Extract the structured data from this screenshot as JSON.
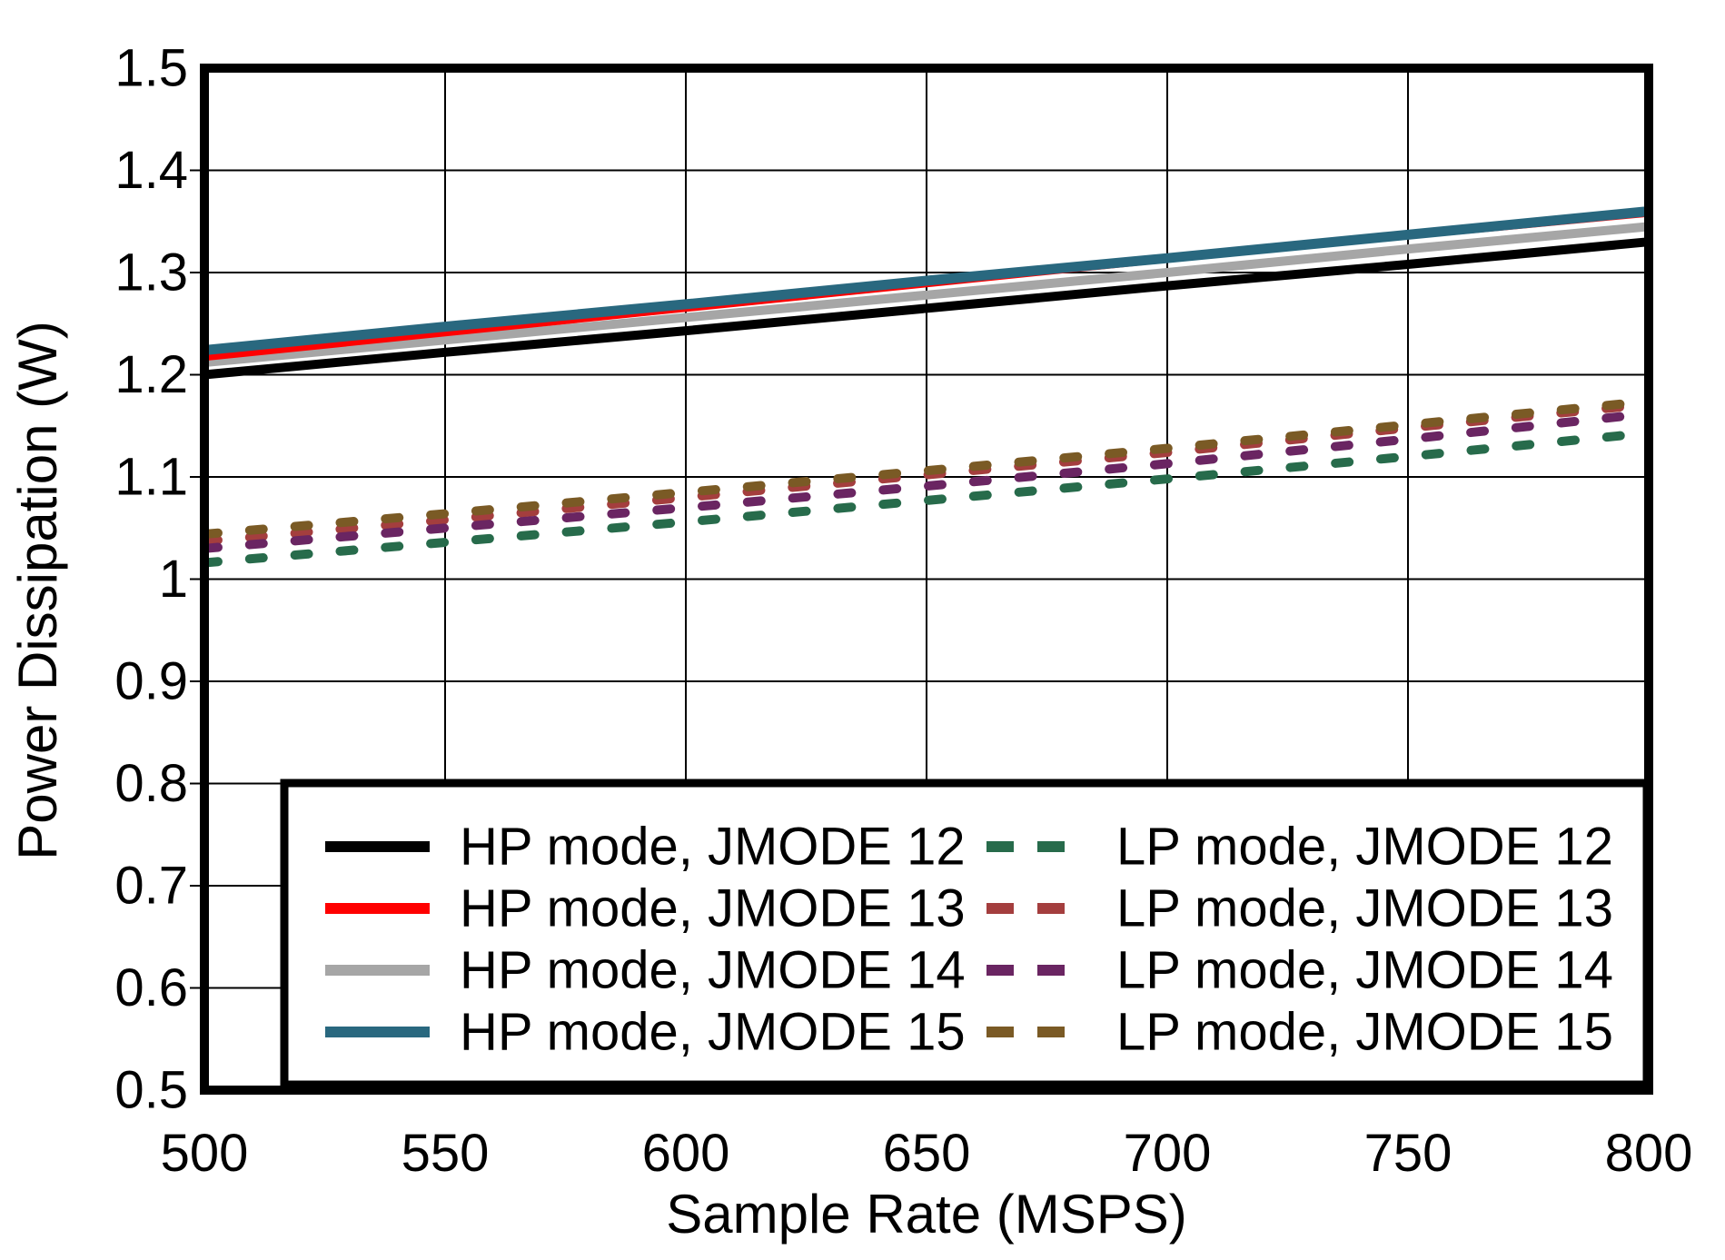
{
  "chart_data": {
    "type": "line",
    "title": "",
    "xlabel": "Sample Rate (MSPS)",
    "ylabel": "Power Dissipation (W)",
    "xlim": [
      500,
      800
    ],
    "ylim": [
      0.5,
      1.5
    ],
    "grid": true,
    "x_ticks": [
      500,
      550,
      600,
      650,
      700,
      750,
      800
    ],
    "x_tick_labels": [
      "500",
      "550",
      "600",
      "650",
      "700",
      "750",
      "800"
    ],
    "y_ticks": [
      1.5,
      1.4,
      1.3,
      1.2,
      1.1,
      1.0,
      0.9,
      0.8,
      0.7,
      0.6,
      0.5
    ],
    "y_tick_labels": [
      "1.5",
      "1.4",
      "1.3",
      "1.2",
      "1.1",
      "1",
      "0.9",
      "0.8",
      "0.7",
      "0.6",
      "0.5"
    ],
    "x": [
      500,
      550,
      600,
      650,
      700,
      750,
      800
    ],
    "legend_position": "inside bottom-left, boxed, 2 columns",
    "series": [
      {
        "name": "HP mode, JMODE 12",
        "mode": "HP",
        "jmode": 12,
        "color": "#000000",
        "line_style": "solid",
        "legend_column": "left",
        "draw_order": 1,
        "values": [
          1.2,
          1.222,
          1.243,
          1.265,
          1.287,
          1.308,
          1.33
        ]
      },
      {
        "name": "HP mode, JMODE 13",
        "mode": "HP",
        "jmode": 13,
        "color": "#FF0000",
        "line_style": "solid",
        "legend_column": "left",
        "draw_order": 3,
        "values": [
          1.218,
          1.242,
          1.266,
          1.29,
          1.314,
          1.337,
          1.359
        ]
      },
      {
        "name": "HP mode, JMODE 14",
        "mode": "HP",
        "jmode": 14,
        "color": "#A6A6A6",
        "line_style": "solid",
        "legend_column": "left",
        "draw_order": 2,
        "values": [
          1.212,
          1.234,
          1.256,
          1.278,
          1.3,
          1.323,
          1.345
        ]
      },
      {
        "name": "HP mode, JMODE 15",
        "mode": "HP",
        "jmode": 15,
        "color": "#29687F",
        "line_style": "solid",
        "legend_column": "left",
        "draw_order": 4,
        "values": [
          1.224,
          1.247,
          1.269,
          1.292,
          1.314,
          1.337,
          1.36
        ]
      },
      {
        "name": "LP mode, JMODE 12",
        "mode": "LP",
        "jmode": 12,
        "color": "#276B4B",
        "line_style": "dashed",
        "legend_column": "right",
        "draw_order": 8,
        "values": [
          1.016,
          1.036,
          1.056,
          1.077,
          1.098,
          1.12,
          1.143
        ]
      },
      {
        "name": "LP mode, JMODE 13",
        "mode": "LP",
        "jmode": 13,
        "color": "#A43E3E",
        "line_style": "dashed",
        "legend_column": "right",
        "draw_order": 5,
        "values": [
          1.037,
          1.058,
          1.08,
          1.102,
          1.124,
          1.148,
          1.171
        ]
      },
      {
        "name": "LP mode, JMODE 14",
        "mode": "LP",
        "jmode": 14,
        "color": "#6A2562",
        "line_style": "dashed",
        "legend_column": "right",
        "draw_order": 7,
        "values": [
          1.03,
          1.05,
          1.07,
          1.091,
          1.113,
          1.137,
          1.162
        ]
      },
      {
        "name": "LP mode, JMODE 15",
        "mode": "LP",
        "jmode": 15,
        "color": "#7A5A25",
        "line_style": "dashed",
        "legend_column": "right",
        "draw_order": 6,
        "values": [
          1.044,
          1.064,
          1.085,
          1.106,
          1.128,
          1.151,
          1.174
        ]
      }
    ],
    "colors": {
      "axes": "#000000",
      "grid": "#000000",
      "background": "#FFFFFF"
    }
  }
}
